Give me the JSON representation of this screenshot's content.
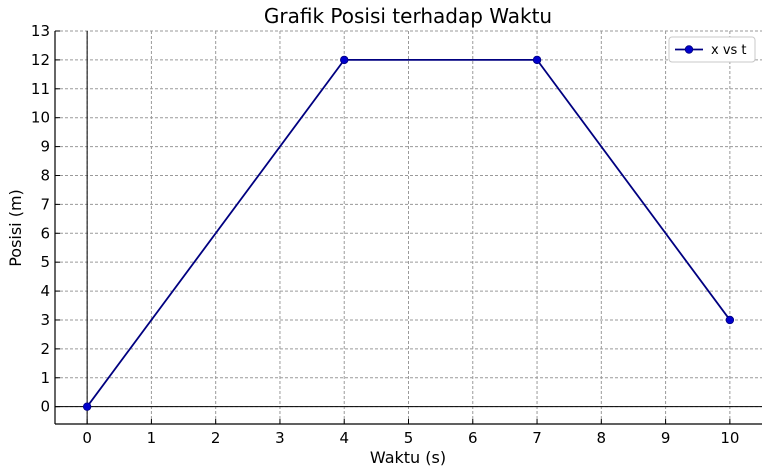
{
  "chart_data": {
    "type": "line",
    "title": "Grafik Posisi terhadap Waktu",
    "xlabel": "Waktu (s)",
    "ylabel": "Posisi (m)",
    "xlim": [
      -0.5,
      10.5
    ],
    "ylim": [
      -0.6,
      13
    ],
    "xticks": [
      0,
      1,
      2,
      3,
      4,
      5,
      6,
      7,
      8,
      9,
      10
    ],
    "yticks": [
      0,
      1,
      2,
      3,
      4,
      5,
      6,
      7,
      8,
      9,
      10,
      11,
      12,
      13
    ],
    "grid": true,
    "legend_position": "top-right",
    "series": [
      {
        "name": "x vs t",
        "color": "#000080",
        "marker_color": "#0000cc",
        "x": [
          0,
          4,
          7,
          10
        ],
        "y": [
          0,
          12,
          12,
          3
        ]
      }
    ]
  }
}
